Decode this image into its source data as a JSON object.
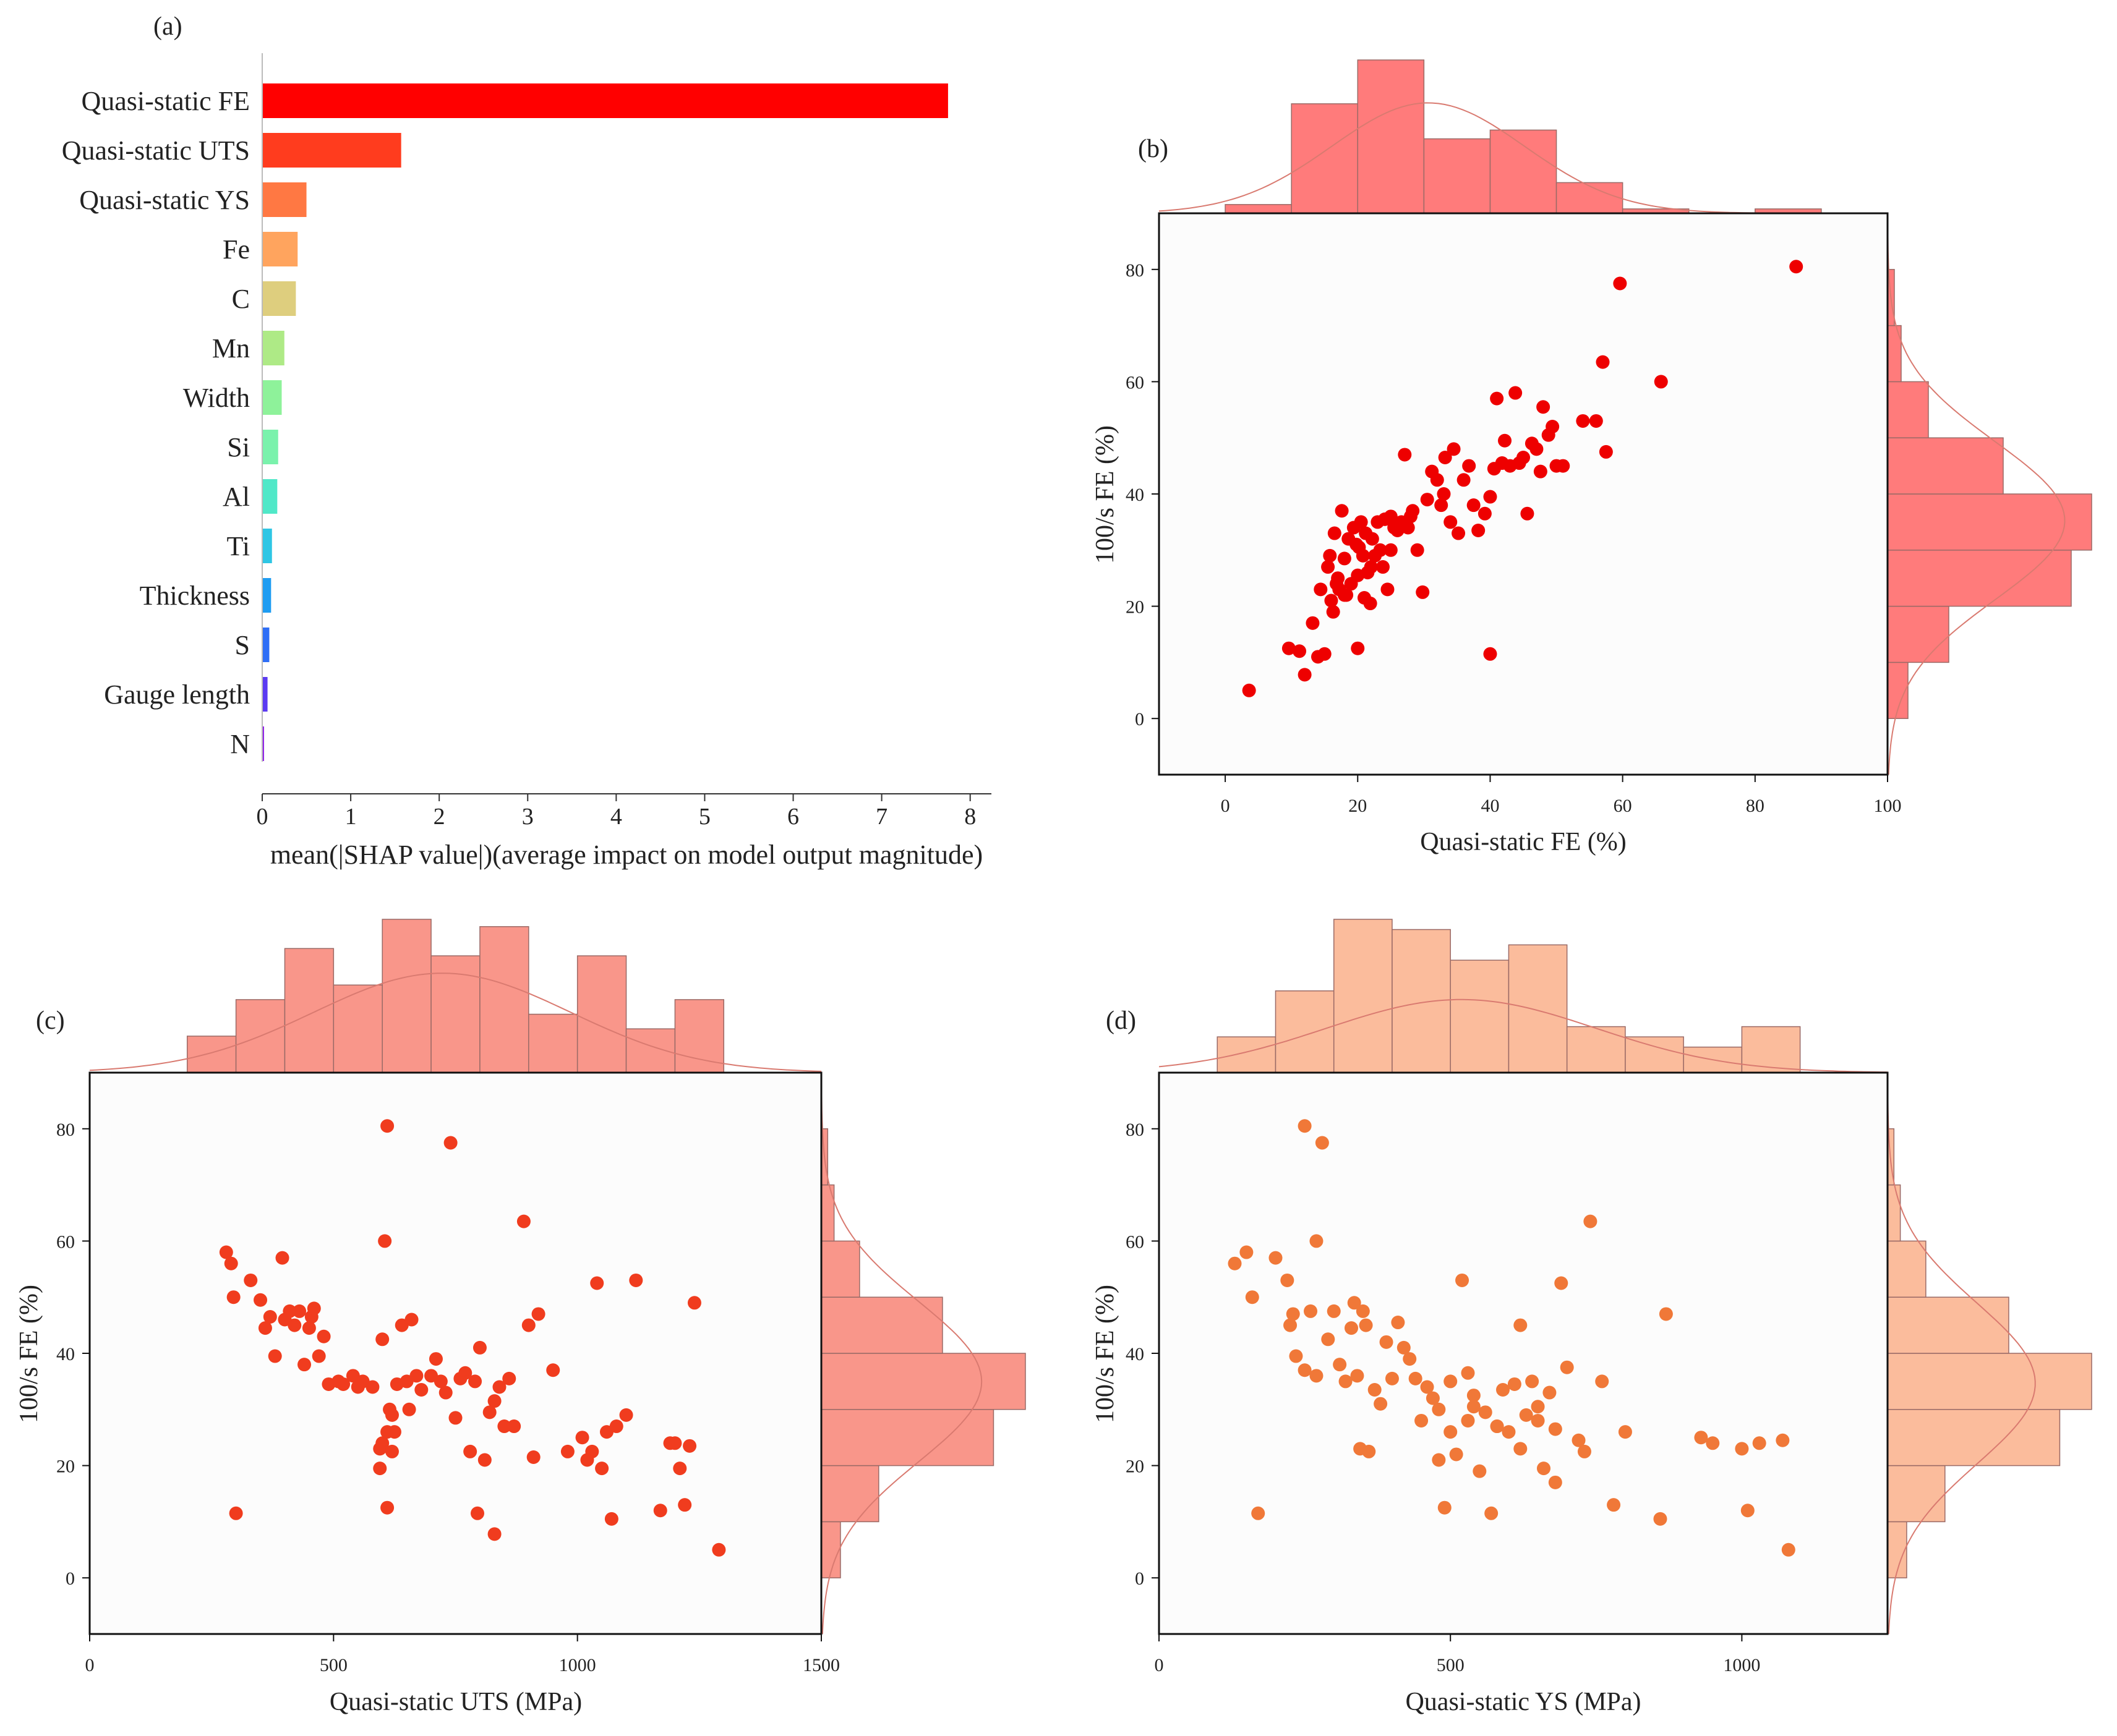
{
  "chart_data": [
    {
      "panel": "(a)",
      "type": "bar",
      "orientation": "horizontal",
      "title": "",
      "xlabel": "mean(|SHAP value|)(average impact on model output magnitude)",
      "ylabel": "",
      "xlim": [
        0,
        8.1
      ],
      "xticks": [
        0,
        1,
        2,
        3,
        4,
        5,
        6,
        7,
        8
      ],
      "categories": [
        "Quasi-static FE",
        "Quasi-static UTS",
        "Quasi-static YS",
        "Fe",
        "C",
        "Mn",
        "Width",
        "Si",
        "Al",
        "Ti",
        "Thickness",
        "S",
        "Gauge length",
        "N"
      ],
      "values": [
        7.75,
        1.57,
        0.5,
        0.4,
        0.38,
        0.25,
        0.22,
        0.18,
        0.17,
        0.11,
        0.1,
        0.08,
        0.06,
        0.02
      ],
      "colors": [
        "#ff0000",
        "#ff3c1e",
        "#ff7843",
        "#ffa45e",
        "#dece7e",
        "#aeea86",
        "#8ef29a",
        "#7af2ac",
        "#50e8c8",
        "#2ec6e4",
        "#1e9cf2",
        "#2e6ef6",
        "#5a3af2",
        "#8a14e8"
      ]
    },
    {
      "panel": "(b)",
      "type": "scatter",
      "xlabel": "Quasi-static FE (%)",
      "ylabel": "100/s FE (%)",
      "xlim": [
        -10,
        100
      ],
      "ylim": [
        -10,
        90
      ],
      "xticks": [
        0,
        20,
        40,
        60,
        80,
        100
      ],
      "yticks": [
        0,
        20,
        40,
        60,
        80
      ],
      "point_color": "#ee0000",
      "hist_color": "#ff7b7b",
      "x": [
        3.6,
        9.6,
        11.2,
        12.0,
        13.2,
        14.0,
        14.4,
        15.0,
        15.5,
        15.8,
        16.0,
        16.3,
        16.5,
        16.8,
        17.0,
        17.2,
        17.6,
        18.0,
        18.3,
        18.6,
        19.0,
        19.4,
        19.8,
        20.0,
        20.2,
        20.5,
        20.8,
        21.0,
        21.2,
        21.5,
        21.9,
        22.2,
        22.6,
        23.0,
        23.4,
        23.8,
        24.1,
        24.5,
        25.0,
        25.5,
        26.0,
        26.6,
        27.1,
        27.6,
        28.3,
        29.0,
        29.8,
        30.5,
        31.2,
        32.0,
        32.6,
        33.2,
        34.0,
        34.5,
        35.2,
        36.0,
        36.8,
        37.5,
        38.2,
        39.2,
        40.0,
        40.6,
        41.0,
        41.8,
        42.2,
        43.0,
        43.8,
        44.4,
        45.0,
        45.6,
        46.3,
        47.0,
        47.6,
        48.0,
        48.8,
        49.4,
        50.0,
        51.0,
        54.0,
        56.0,
        57.0,
        57.5,
        40.0,
        59.6,
        65.8,
        86.2,
        20.0,
        28.0,
        33.0,
        25.0,
        22.0,
        18.0
      ],
      "y": [
        5.0,
        12.5,
        12.0,
        7.8,
        17.0,
        11.0,
        23.0,
        11.5,
        27.0,
        29.0,
        21.0,
        19.0,
        33.0,
        24.0,
        25.0,
        23.0,
        37.0,
        28.5,
        22.0,
        32.0,
        24.0,
        34.0,
        31.0,
        25.5,
        30.5,
        35.0,
        29.0,
        21.5,
        33.0,
        26.0,
        20.5,
        32.0,
        29.0,
        35.0,
        30.0,
        27.0,
        35.5,
        23.0,
        36.0,
        34.0,
        33.5,
        35.0,
        47.0,
        34.0,
        37.0,
        30.0,
        22.5,
        39.0,
        44.0,
        42.5,
        38.0,
        46.5,
        35.0,
        48.0,
        33.0,
        42.5,
        45.0,
        38.0,
        33.5,
        36.5,
        11.5,
        44.5,
        57.0,
        45.5,
        49.5,
        45.0,
        58.0,
        45.5,
        46.5,
        36.5,
        49.0,
        48.0,
        44.0,
        55.5,
        50.5,
        52.0,
        45.0,
        45.0,
        53.0,
        53.0,
        63.5,
        47.5,
        39.5,
        77.5,
        60.0,
        80.5,
        12.5,
        36.0,
        40.0,
        30.0,
        27.0,
        22.0
      ],
      "hist_x": {
        "edges": [
          0,
          10,
          20,
          30,
          40,
          50,
          60,
          70,
          80,
          90
        ],
        "counts": [
          2,
          25,
          35,
          17,
          19,
          7,
          1,
          0,
          1
        ]
      },
      "hist_y": {
        "edges": [
          -10,
          0,
          10,
          20,
          30,
          40,
          50,
          60,
          70,
          80,
          90
        ],
        "counts": [
          0,
          3,
          9,
          27,
          30,
          17,
          6,
          2,
          1,
          0
        ]
      }
    },
    {
      "panel": "(c)",
      "type": "scatter",
      "xlabel": "Quasi-static UTS (MPa)",
      "ylabel": "100/s FE (%)",
      "xlim": [
        0,
        1500
      ],
      "ylim": [
        -10,
        90
      ],
      "xticks": [
        0,
        500,
        1000,
        1500
      ],
      "yticks": [
        0,
        20,
        40,
        60,
        80
      ],
      "point_color": "#f03c1e",
      "hist_color": "#f9968a",
      "x": [
        280,
        290,
        295,
        300,
        330,
        350,
        360,
        370,
        380,
        395,
        400,
        410,
        420,
        430,
        440,
        450,
        455,
        460,
        470,
        480,
        490,
        510,
        520,
        540,
        550,
        560,
        580,
        595,
        600,
        605,
        610,
        615,
        620,
        625,
        630,
        640,
        650,
        655,
        660,
        670,
        680,
        700,
        710,
        720,
        730,
        740,
        750,
        760,
        770,
        780,
        790,
        795,
        800,
        810,
        820,
        830,
        840,
        850,
        860,
        870,
        890,
        900,
        910,
        920,
        950,
        980,
        1010,
        1020,
        1030,
        1040,
        1050,
        1060,
        1070,
        1080,
        1100,
        1120,
        1170,
        1190,
        1200,
        1210,
        1220,
        1230,
        1240,
        1290,
        610,
        830,
        595,
        600,
        610,
        620
      ],
      "y": [
        58.0,
        56.0,
        50.0,
        11.5,
        53.0,
        49.5,
        44.5,
        46.5,
        39.5,
        57.0,
        46.0,
        47.5,
        45.0,
        47.5,
        38.0,
        44.5,
        46.5,
        48.0,
        39.5,
        43.0,
        34.5,
        35.0,
        34.5,
        36.0,
        34.0,
        35.0,
        34.0,
        23.0,
        42.5,
        60.0,
        80.5,
        30.0,
        22.5,
        26.0,
        34.5,
        45.0,
        35.0,
        30.0,
        46.0,
        36.0,
        33.5,
        36.0,
        39.0,
        35.0,
        33.0,
        77.5,
        28.5,
        35.5,
        36.5,
        22.5,
        35.0,
        11.5,
        41.0,
        21.0,
        29.5,
        31.5,
        34.0,
        27.0,
        35.5,
        27.0,
        63.5,
        45.0,
        21.5,
        47.0,
        37.0,
        22.5,
        25.0,
        21.0,
        22.5,
        52.5,
        19.5,
        26.0,
        10.5,
        27.0,
        29.0,
        53.0,
        12.0,
        24.0,
        24.0,
        19.5,
        13.0,
        23.5,
        49.0,
        5.0,
        12.5,
        7.8,
        19.5,
        24.0,
        26.0,
        29.0
      ],
      "hist_x": {
        "edges": [
          200,
          300,
          400,
          500,
          600,
          700,
          800,
          900,
          1000,
          1100,
          1200,
          1300
        ],
        "counts": [
          5,
          10,
          17,
          12,
          21,
          16,
          20,
          8,
          16,
          6,
          10
        ]
      },
      "hist_y": {
        "edges": [
          -10,
          0,
          10,
          20,
          30,
          40,
          50,
          60,
          70,
          80,
          90
        ],
        "counts": [
          0,
          3,
          9,
          27,
          32,
          19,
          6,
          2,
          1,
          0
        ]
      }
    },
    {
      "panel": "(d)",
      "type": "scatter",
      "xlabel": "Quasi-static YS (MPa)",
      "ylabel": "100/s FE (%)",
      "xlim": [
        0,
        1250
      ],
      "ylim": [
        -10,
        90
      ],
      "xticks": [
        0,
        500,
        1000
      ],
      "yticks": [
        0,
        20,
        40,
        60,
        80
      ],
      "point_color": "#f07838",
      "hist_color": "#fbbc9c",
      "x": [
        130,
        150,
        160,
        170,
        200,
        220,
        225,
        230,
        235,
        250,
        260,
        270,
        280,
        300,
        310,
        320,
        330,
        335,
        340,
        345,
        350,
        355,
        360,
        370,
        380,
        390,
        400,
        410,
        420,
        430,
        440,
        450,
        460,
        470,
        480,
        490,
        500,
        510,
        520,
        530,
        540,
        550,
        560,
        570,
        580,
        590,
        600,
        610,
        620,
        630,
        640,
        650,
        660,
        670,
        680,
        690,
        700,
        720,
        730,
        740,
        760,
        780,
        800,
        860,
        870,
        930,
        950,
        1000,
        1010,
        1030,
        1070,
        1080,
        250,
        290,
        270,
        480,
        500,
        530,
        540,
        580,
        620,
        650,
        680
      ],
      "y": [
        56.0,
        58.0,
        50.0,
        11.5,
        57.0,
        53.0,
        45.0,
        47.0,
        39.5,
        80.5,
        47.5,
        60.0,
        77.5,
        47.5,
        38.0,
        35.0,
        44.5,
        49.0,
        36.0,
        23.0,
        47.5,
        45.0,
        22.5,
        33.5,
        31.0,
        42.0,
        35.5,
        45.5,
        41.0,
        39.0,
        35.5,
        28.0,
        34.0,
        32.0,
        30.0,
        12.5,
        26.0,
        22.0,
        53.0,
        36.5,
        30.5,
        19.0,
        29.5,
        11.5,
        27.0,
        33.5,
        26.0,
        34.5,
        45.0,
        29.0,
        35.0,
        30.5,
        19.5,
        33.0,
        26.5,
        52.5,
        37.5,
        24.5,
        22.5,
        63.5,
        35.0,
        13.0,
        26.0,
        10.5,
        47.0,
        25.0,
        24.0,
        23.0,
        12.0,
        24.0,
        24.5,
        5.0,
        37.0,
        42.5,
        36.0,
        21.0,
        35.0,
        28.0,
        32.5,
        27.0,
        23.0,
        28.0,
        17.0
      ],
      "hist_x": {
        "edges": [
          100,
          200,
          300,
          400,
          500,
          600,
          700,
          800,
          900,
          1000,
          1100
        ],
        "counts": [
          7,
          16,
          30,
          28,
          22,
          25,
          9,
          7,
          5,
          9
        ]
      },
      "hist_y": {
        "edges": [
          -10,
          0,
          10,
          20,
          30,
          40,
          50,
          60,
          70,
          80,
          90
        ],
        "counts": [
          0,
          3,
          9,
          27,
          32,
          19,
          6,
          2,
          1,
          0
        ]
      }
    }
  ]
}
